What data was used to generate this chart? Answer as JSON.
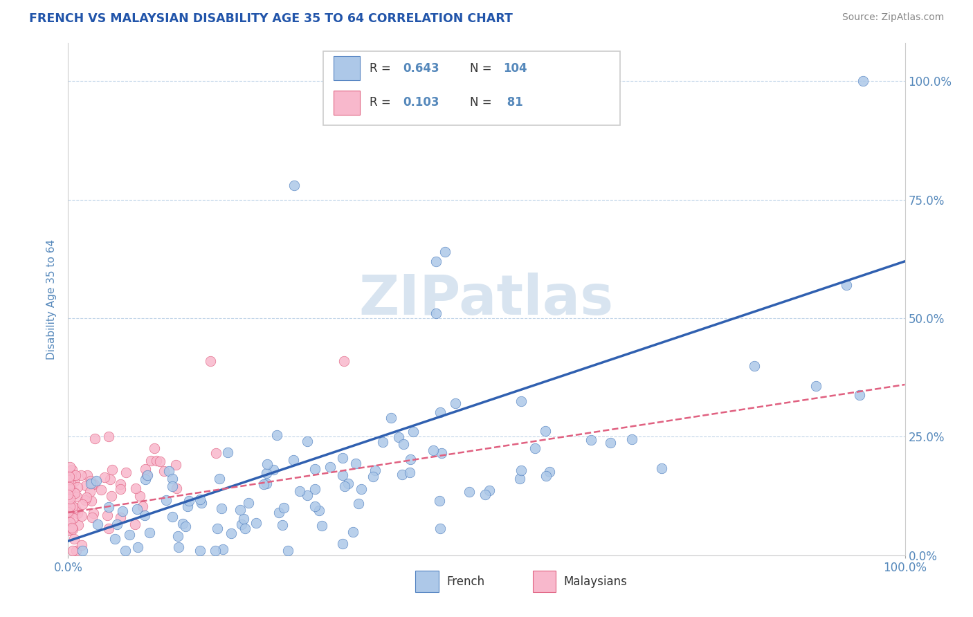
{
  "title": "FRENCH VS MALAYSIAN DISABILITY AGE 35 TO 64 CORRELATION CHART",
  "source_text": "Source: ZipAtlas.com",
  "ylabel": "Disability Age 35 to 64",
  "xlim": [
    0.0,
    1.0
  ],
  "ylim": [
    0.0,
    1.08
  ],
  "ytick_positions": [
    0.0,
    0.25,
    0.5,
    0.75,
    1.0
  ],
  "ytick_labels": [
    "0.0%",
    "25.0%",
    "50.0%",
    "75.0%",
    "100.0%"
  ],
  "french_R": 0.643,
  "french_N": 104,
  "malaysian_R": 0.103,
  "malaysian_N": 81,
  "french_color": "#adc8e8",
  "french_edge_color": "#5080c0",
  "french_line_color": "#3060b0",
  "malaysian_color": "#f8b8cc",
  "malaysian_edge_color": "#e06080",
  "malaysian_line_color": "#e06080",
  "watermark_color": "#d8e4f0",
  "grid_color": "#c0d4e8",
  "axis_color": "#5588bb",
  "title_color": "#2255aa",
  "legend_border_color": "#cccccc",
  "source_color": "#888888",
  "french_line_x0": 0.0,
  "french_line_x1": 1.0,
  "french_line_y0": 0.03,
  "french_line_y1": 0.62,
  "malay_line_x0": 0.0,
  "malay_line_x1": 1.0,
  "malay_line_y0": 0.09,
  "malay_line_y1": 0.36
}
